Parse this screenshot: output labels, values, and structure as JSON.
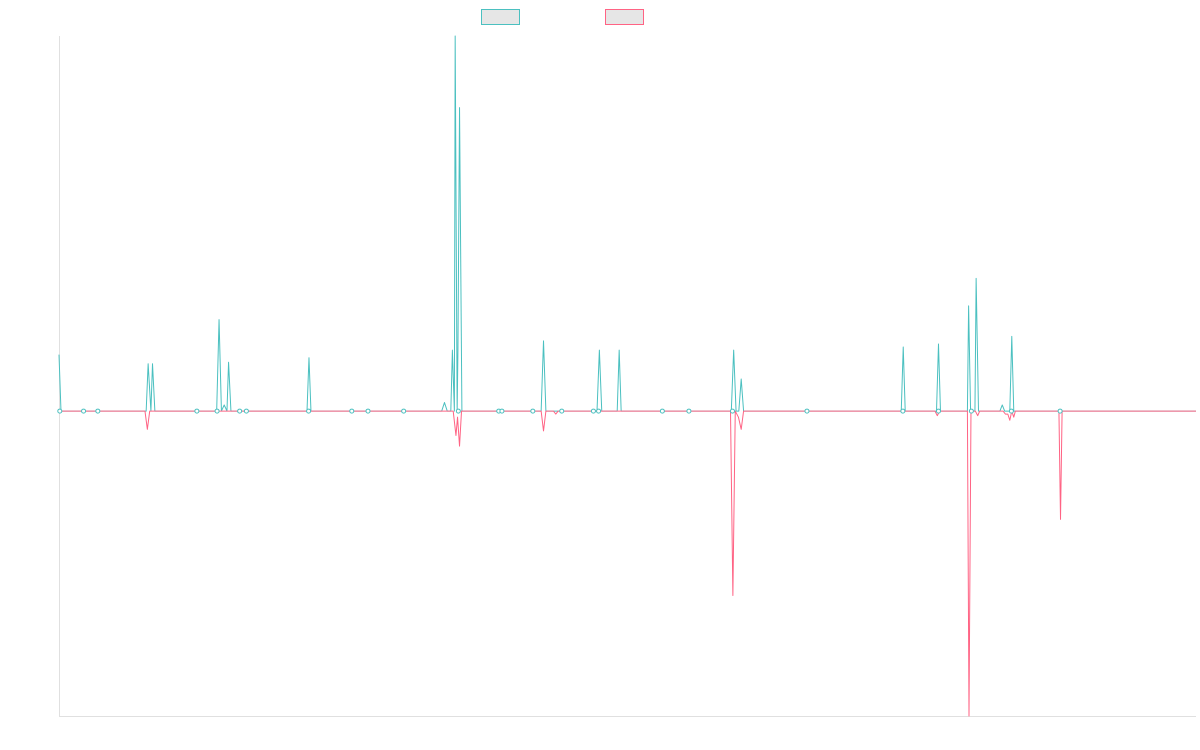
{
  "chart_data": {
    "type": "line",
    "title": "",
    "xlabel": "",
    "ylabel": "",
    "ylim": [
      -1.0,
      1.23
    ],
    "xlim": [
      0,
      287
    ],
    "grid": false,
    "legend_placement": "top",
    "series": [
      {
        "name": "",
        "color": "#4bc0c0",
        "points": [
          [
            0,
            0.185
          ],
          [
            0.5,
            0
          ],
          [
            22,
            0
          ],
          [
            22.5,
            0.155
          ],
          [
            23.2,
            0
          ],
          [
            23.6,
            0.155
          ],
          [
            24.2,
            0
          ],
          [
            39.8,
            0
          ],
          [
            40.4,
            0.3
          ],
          [
            41,
            0
          ],
          [
            41.7,
            0.02
          ],
          [
            42.4,
            0
          ],
          [
            42.8,
            0.16
          ],
          [
            43.4,
            0
          ],
          [
            62.6,
            0
          ],
          [
            63.1,
            0.175
          ],
          [
            63.6,
            0
          ],
          [
            96.6,
            0
          ],
          [
            97.3,
            0.028
          ],
          [
            98,
            0
          ],
          [
            98.9,
            0
          ],
          [
            99.3,
            0.2
          ],
          [
            99.8,
            0
          ],
          [
            100,
            1.23
          ],
          [
            100.5,
            0
          ],
          [
            100.7,
            0.2
          ],
          [
            101.1,
            0.995
          ],
          [
            101.7,
            0
          ],
          [
            121.7,
            0
          ],
          [
            122.3,
            0.23
          ],
          [
            122.9,
            0
          ],
          [
            135.8,
            0
          ],
          [
            136.4,
            0.2
          ],
          [
            137,
            0
          ],
          [
            140.9,
            0
          ],
          [
            141.4,
            0.2
          ],
          [
            141.9,
            0
          ],
          [
            169.7,
            0
          ],
          [
            170.3,
            0.2
          ],
          [
            170.9,
            0
          ],
          [
            171.6,
            0
          ],
          [
            172.2,
            0.105
          ],
          [
            172.8,
            0
          ],
          [
            212.6,
            0
          ],
          [
            213.1,
            0.21
          ],
          [
            213.6,
            0
          ],
          [
            221.5,
            0
          ],
          [
            222,
            0.22
          ],
          [
            222.5,
            0
          ],
          [
            228.6,
            0
          ],
          [
            229.3,
            0
          ],
          [
            229.6,
            0.345
          ],
          [
            230.1,
            0
          ],
          [
            231.2,
            0
          ],
          [
            231.5,
            0.435
          ],
          [
            232.1,
            0
          ],
          [
            237.5,
            0
          ],
          [
            238.1,
            0.02
          ],
          [
            238.7,
            0
          ],
          [
            240,
            0
          ],
          [
            240.5,
            0.245
          ],
          [
            241,
            0
          ],
          [
            287,
            0
          ]
        ]
      },
      {
        "name": "",
        "color": "#ff6384",
        "points": [
          [
            0,
            0
          ],
          [
            21.7,
            0
          ],
          [
            22.3,
            -0.06
          ],
          [
            22.9,
            0
          ],
          [
            99.5,
            0
          ],
          [
            100.2,
            -0.08
          ],
          [
            100.6,
            -0.02
          ],
          [
            101.1,
            -0.115
          ],
          [
            101.6,
            0
          ],
          [
            121.7,
            0
          ],
          [
            122.3,
            -0.065
          ],
          [
            122.9,
            0
          ],
          [
            124.8,
            0
          ],
          [
            125.4,
            -0.01
          ],
          [
            126,
            0
          ],
          [
            169.5,
            0
          ],
          [
            170.1,
            -0.605
          ],
          [
            170.7,
            0
          ],
          [
            171.5,
            -0.02
          ],
          [
            172.2,
            -0.06
          ],
          [
            172.8,
            0
          ],
          [
            221.1,
            0
          ],
          [
            221.7,
            -0.015
          ],
          [
            222.3,
            0
          ],
          [
            229.3,
            0
          ],
          [
            229.7,
            -1.0
          ],
          [
            230.2,
            0
          ],
          [
            231.3,
            0
          ],
          [
            231.9,
            -0.015
          ],
          [
            232.4,
            0
          ],
          [
            238.3,
            0
          ],
          [
            238.9,
            -0.01
          ],
          [
            239.5,
            -0.01
          ],
          [
            240,
            -0.03
          ],
          [
            240.5,
            0
          ],
          [
            241,
            -0.02
          ],
          [
            241.4,
            0
          ],
          [
            252.4,
            0
          ],
          [
            252.8,
            -0.355
          ],
          [
            253.2,
            0
          ],
          [
            287,
            0
          ]
        ]
      }
    ],
    "markers": [
      0.2,
      6.2,
      9.8,
      34.8,
      39.9,
      45.6,
      47.3,
      63,
      73.9,
      78,
      87,
      100.8,
      111,
      111.8,
      119.6,
      126.9,
      134.9,
      136.2,
      152.3,
      159,
      170,
      188.8,
      213,
      222,
      230.3,
      240.4,
      252.7
    ]
  }
}
